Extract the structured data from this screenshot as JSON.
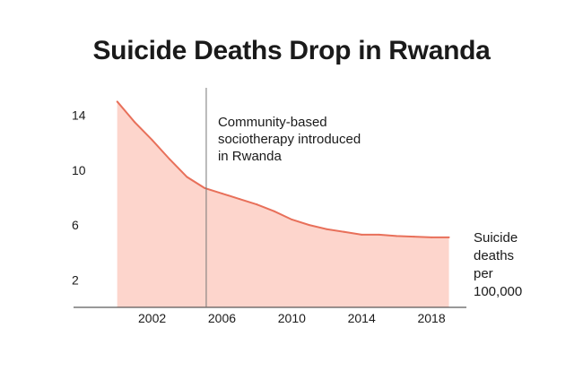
{
  "chart_data": {
    "type": "area",
    "title": "Suicide Deaths Drop in Rwanda",
    "xlabel": "",
    "ylabel": "",
    "x": [
      2000,
      2001,
      2002,
      2003,
      2004,
      2005,
      2006,
      2007,
      2008,
      2009,
      2010,
      2011,
      2012,
      2013,
      2014,
      2015,
      2016,
      2017,
      2018,
      2019
    ],
    "series": [
      {
        "name": "Suicide deaths per 100,000",
        "values": [
          15.0,
          13.5,
          12.2,
          10.8,
          9.5,
          8.7,
          8.3,
          7.9,
          7.5,
          7.0,
          6.4,
          6.0,
          5.7,
          5.5,
          5.3,
          5.3,
          5.2,
          5.15,
          5.1,
          5.1
        ],
        "label_lines": [
          "Suicide",
          "deaths",
          "per",
          "100,000"
        ]
      }
    ],
    "xticks": [
      "2002",
      "2006",
      "2010",
      "2014",
      "2018"
    ],
    "yticks": [
      "2",
      "6",
      "10",
      "14"
    ],
    "xlim": [
      1997.5,
      2020
    ],
    "ylim": [
      0,
      16
    ],
    "annotation": {
      "x": 2005.1,
      "lines": [
        "Community-based",
        "sociotherapy introduced",
        "in Rwanda"
      ]
    },
    "colors": {
      "fill": "#fdd5cc",
      "line": "#e8705a",
      "axis": "#333333",
      "annotation_line": "#777777"
    },
    "grid": false
  }
}
